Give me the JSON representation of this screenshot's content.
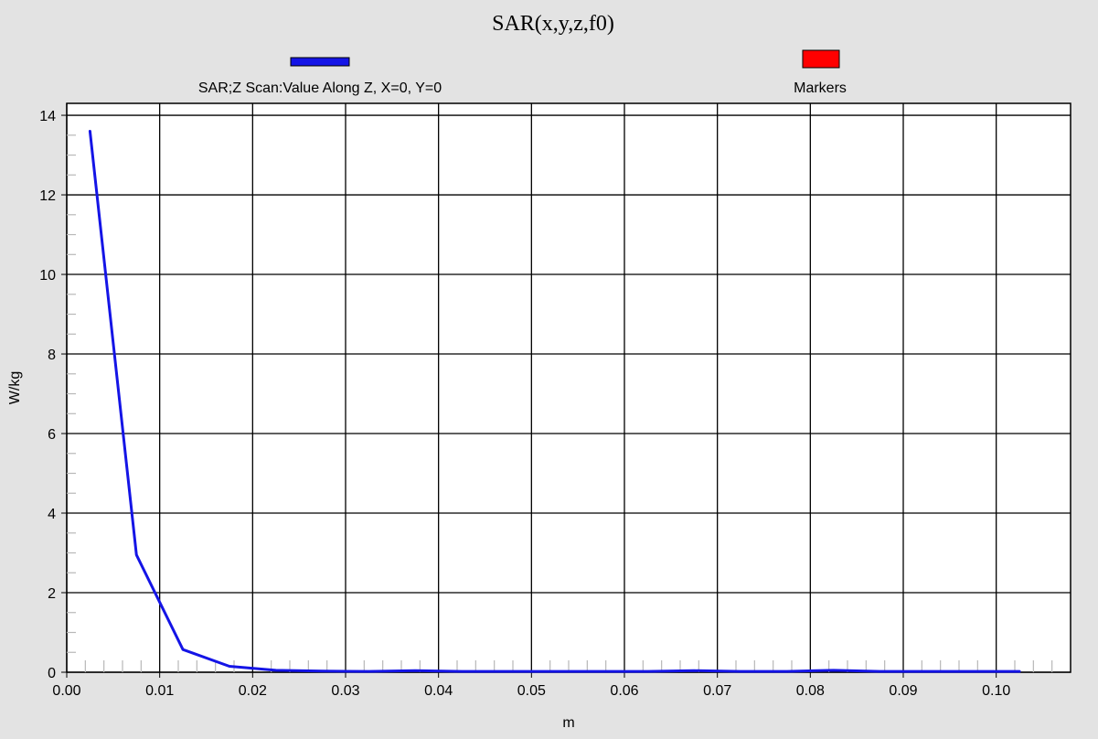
{
  "chart_data": {
    "type": "line",
    "title": "SAR(x,y,z,f0)",
    "xlabel": "m",
    "ylabel": "W/kg",
    "xlim": [
      0.0,
      0.108
    ],
    "ylim": [
      0,
      14.3
    ],
    "x_ticks": [
      "0.00",
      "0.01",
      "0.02",
      "0.03",
      "0.04",
      "0.05",
      "0.06",
      "0.07",
      "0.08",
      "0.09",
      "0.10"
    ],
    "y_ticks": [
      "0",
      "2",
      "4",
      "6",
      "8",
      "10",
      "12",
      "14"
    ],
    "grid": true,
    "legend_position": "top",
    "series": [
      {
        "name": "SAR;Z Scan:Value Along Z, X=0, Y=0",
        "color": "#1414e6",
        "x": [
          0.0025,
          0.0075,
          0.0125,
          0.0175,
          0.0225,
          0.0275,
          0.0325,
          0.0375,
          0.0425,
          0.0475,
          0.0525,
          0.0575,
          0.0625,
          0.0675,
          0.0725,
          0.0775,
          0.0825,
          0.0875,
          0.0925,
          0.0975,
          0.1025
        ],
        "values": [
          13.6,
          2.95,
          0.57,
          0.15,
          0.05,
          0.03,
          0.02,
          0.04,
          0.02,
          0.02,
          0.02,
          0.02,
          0.02,
          0.04,
          0.02,
          0.02,
          0.05,
          0.02,
          0.02,
          0.02,
          0.02
        ]
      },
      {
        "name": "Markers",
        "color": "#ff0000",
        "x": [],
        "values": []
      }
    ]
  }
}
